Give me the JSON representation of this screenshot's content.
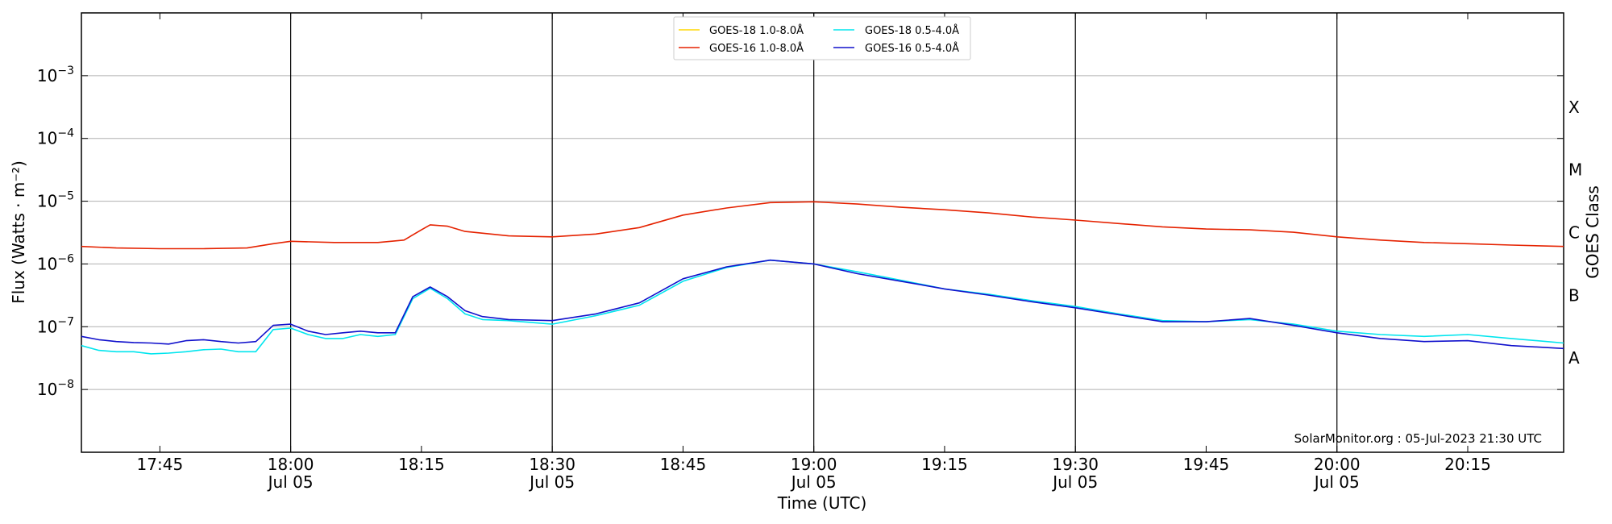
{
  "chart_data": {
    "type": "line",
    "xlabel": "Time (UTC)",
    "ylabel": "Flux (Watts · m⁻²)",
    "y2label": "GOES Class",
    "yscale": "log",
    "ylim": [
      1e-09,
      0.01
    ],
    "xlim": [
      "2023-07-05T17:36",
      "2023-07-05T20:26"
    ],
    "grid": "horizontal",
    "legend_position": "top-center",
    "credit": "SolarMonitor.org : 05-Jul-2023 21:30 UTC",
    "y_ticks": [
      {
        "value": 1e-08,
        "base": "10",
        "exp": "−8"
      },
      {
        "value": 1e-07,
        "base": "10",
        "exp": "−7"
      },
      {
        "value": 1e-06,
        "base": "10",
        "exp": "−6"
      },
      {
        "value": 1e-05,
        "base": "10",
        "exp": "−5"
      },
      {
        "value": 0.0001,
        "base": "10",
        "exp": "−4"
      },
      {
        "value": 0.001,
        "base": "10",
        "exp": "−3"
      }
    ],
    "x_ticks": [
      {
        "time": "17:45",
        "line1": "17:45",
        "line2": ""
      },
      {
        "time": "18:00",
        "line1": "18:00",
        "line2": "Jul 05"
      },
      {
        "time": "18:15",
        "line1": "18:15",
        "line2": ""
      },
      {
        "time": "18:30",
        "line1": "18:30",
        "line2": "Jul 05"
      },
      {
        "time": "18:45",
        "line1": "18:45",
        "line2": ""
      },
      {
        "time": "19:00",
        "line1": "19:00",
        "line2": "Jul 05"
      },
      {
        "time": "19:15",
        "line1": "19:15",
        "line2": ""
      },
      {
        "time": "19:30",
        "line1": "19:30",
        "line2": "Jul 05"
      },
      {
        "time": "19:45",
        "line1": "19:45",
        "line2": ""
      },
      {
        "time": "20:00",
        "line1": "20:00",
        "line2": "Jul 05"
      },
      {
        "time": "20:15",
        "line1": "20:15",
        "line2": ""
      }
    ],
    "vertical_lines": [
      "18:00",
      "18:30",
      "19:00",
      "19:30",
      "20:00"
    ],
    "goes_classes": [
      {
        "label": "A",
        "value": 3.16e-08
      },
      {
        "label": "B",
        "value": 3.16e-07
      },
      {
        "label": "C",
        "value": 3.16e-06
      },
      {
        "label": "M",
        "value": 3.16e-05
      },
      {
        "label": "X",
        "value": 0.000316
      }
    ],
    "series": [
      {
        "name": "GOES-18 1.0-8.0Å",
        "color": "#ffd700",
        "x": [],
        "y": []
      },
      {
        "name": "GOES-18 0.5-4.0Å",
        "color": "#00e5ee",
        "x": [
          "17:36",
          "17:38",
          "17:40",
          "17:42",
          "17:44",
          "17:46",
          "17:48",
          "17:50",
          "17:52",
          "17:54",
          "17:56",
          "17:58",
          "18:00",
          "18:02",
          "18:04",
          "18:06",
          "18:08",
          "18:10",
          "18:12",
          "18:14",
          "18:16",
          "18:18",
          "18:20",
          "18:22",
          "18:25",
          "18:30",
          "18:35",
          "18:40",
          "18:45",
          "18:50",
          "18:55",
          "19:00",
          "19:05",
          "19:10",
          "19:15",
          "19:20",
          "19:25",
          "19:30",
          "19:35",
          "19:40",
          "19:45",
          "19:50",
          "19:55",
          "20:00",
          "20:05",
          "20:10",
          "20:15",
          "20:20",
          "20:26"
        ],
        "y": [
          5e-08,
          4.2e-08,
          4e-08,
          4e-08,
          3.7e-08,
          3.8e-08,
          4e-08,
          4.3e-08,
          4.4e-08,
          4e-08,
          4e-08,
          9e-08,
          9.5e-08,
          7.5e-08,
          6.5e-08,
          6.5e-08,
          7.5e-08,
          7e-08,
          7.5e-08,
          2.8e-07,
          4.1e-07,
          2.8e-07,
          1.6e-07,
          1.3e-07,
          1.25e-07,
          1.1e-07,
          1.5e-07,
          2.2e-07,
          5.3e-07,
          8.8e-07,
          1.15e-06,
          1e-06,
          7.5e-07,
          5.5e-07,
          4e-07,
          3.3e-07,
          2.6e-07,
          2.1e-07,
          1.6e-07,
          1.25e-07,
          1.2e-07,
          1.3e-07,
          1.1e-07,
          8.5e-08,
          7.5e-08,
          7e-08,
          7.5e-08,
          6.5e-08,
          5.5e-08
        ]
      },
      {
        "name": "GOES-16 1.0-8.0Å",
        "color": "#e52200",
        "x": [
          "17:36",
          "17:40",
          "17:45",
          "17:50",
          "17:55",
          "17:58",
          "18:00",
          "18:05",
          "18:10",
          "18:13",
          "18:15",
          "18:16",
          "18:18",
          "18:20",
          "18:25",
          "18:30",
          "18:35",
          "18:40",
          "18:45",
          "18:50",
          "18:55",
          "19:00",
          "19:05",
          "19:10",
          "19:15",
          "19:20",
          "19:25",
          "19:30",
          "19:35",
          "19:40",
          "19:45",
          "19:50",
          "19:55",
          "20:00",
          "20:05",
          "20:10",
          "20:15",
          "20:20",
          "20:26"
        ],
        "y": [
          1.9e-06,
          1.8e-06,
          1.75e-06,
          1.75e-06,
          1.8e-06,
          2.1e-06,
          2.3e-06,
          2.2e-06,
          2.2e-06,
          2.4e-06,
          3.5e-06,
          4.2e-06,
          4e-06,
          3.3e-06,
          2.8e-06,
          2.7e-06,
          3e-06,
          3.8e-06,
          6e-06,
          7.8e-06,
          9.5e-06,
          9.8e-06,
          9e-06,
          8e-06,
          7.3e-06,
          6.5e-06,
          5.6e-06,
          5e-06,
          4.4e-06,
          3.9e-06,
          3.6e-06,
          3.5e-06,
          3.2e-06,
          2.7e-06,
          2.4e-06,
          2.2e-06,
          2.1e-06,
          2e-06,
          1.9e-06
        ]
      },
      {
        "name": "GOES-16 0.5-4.0Å",
        "color": "#1010cc",
        "x": [
          "17:36",
          "17:38",
          "17:40",
          "17:42",
          "17:44",
          "17:46",
          "17:48",
          "17:50",
          "17:52",
          "17:54",
          "17:56",
          "17:58",
          "18:00",
          "18:02",
          "18:04",
          "18:06",
          "18:08",
          "18:10",
          "18:12",
          "18:14",
          "18:16",
          "18:18",
          "18:20",
          "18:22",
          "18:25",
          "18:30",
          "18:35",
          "18:40",
          "18:45",
          "18:50",
          "18:55",
          "19:00",
          "19:05",
          "19:10",
          "19:15",
          "19:20",
          "19:25",
          "19:30",
          "19:35",
          "19:40",
          "19:45",
          "19:50",
          "19:55",
          "20:00",
          "20:05",
          "20:10",
          "20:15",
          "20:20",
          "20:26"
        ],
        "y": [
          7e-08,
          6.2e-08,
          5.8e-08,
          5.6e-08,
          5.5e-08,
          5.3e-08,
          6e-08,
          6.2e-08,
          5.8e-08,
          5.5e-08,
          5.8e-08,
          1.05e-07,
          1.1e-07,
          8.5e-08,
          7.5e-08,
          8e-08,
          8.5e-08,
          8e-08,
          8e-08,
          3e-07,
          4.3e-07,
          3e-07,
          1.8e-07,
          1.45e-07,
          1.3e-07,
          1.25e-07,
          1.6e-07,
          2.4e-07,
          5.8e-07,
          9e-07,
          1.15e-06,
          1e-06,
          7e-07,
          5.3e-07,
          4e-07,
          3.2e-07,
          2.5e-07,
          2e-07,
          1.55e-07,
          1.2e-07,
          1.2e-07,
          1.35e-07,
          1.05e-07,
          8e-08,
          6.5e-08,
          5.8e-08,
          6e-08,
          5e-08,
          4.5e-08
        ]
      }
    ]
  }
}
